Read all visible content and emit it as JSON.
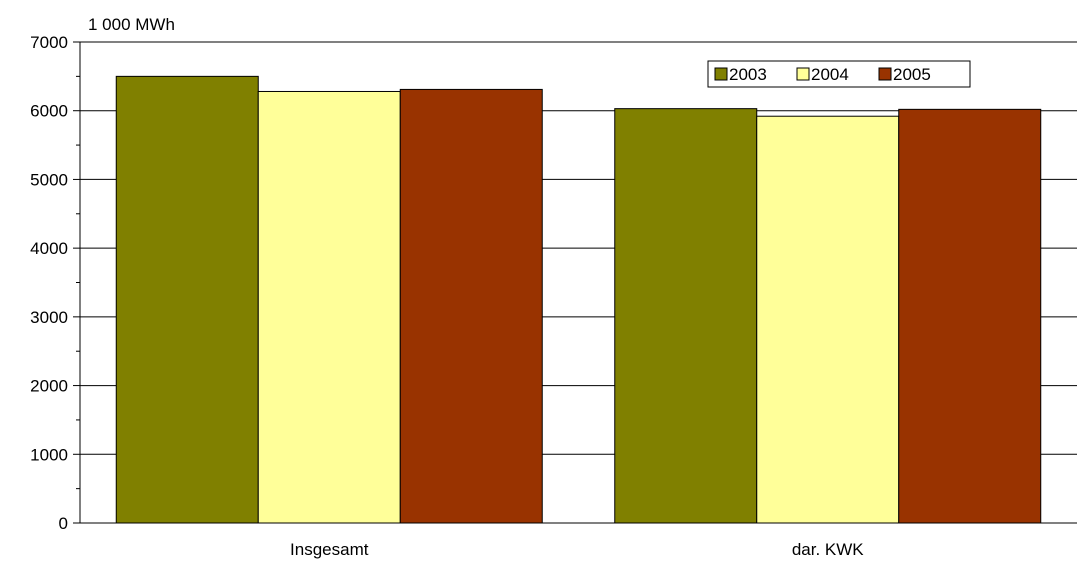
{
  "chart_data": {
    "type": "bar",
    "ylabel": "1 000 MWh",
    "categories": [
      "Insgesamt",
      "dar. KWK"
    ],
    "series": [
      {
        "name": "2003",
        "values": [
          6500,
          6030
        ],
        "color": "#808000"
      },
      {
        "name": "2004",
        "values": [
          6280,
          5920
        ],
        "color": "#FFFF99"
      },
      {
        "name": "2005",
        "values": [
          6310,
          6020
        ],
        "color": "#993300"
      }
    ],
    "ylim": [
      0,
      7000
    ],
    "yticks": [
      0,
      1000,
      2000,
      3000,
      4000,
      5000,
      6000,
      7000
    ],
    "grid": true,
    "legend": "top-right"
  }
}
